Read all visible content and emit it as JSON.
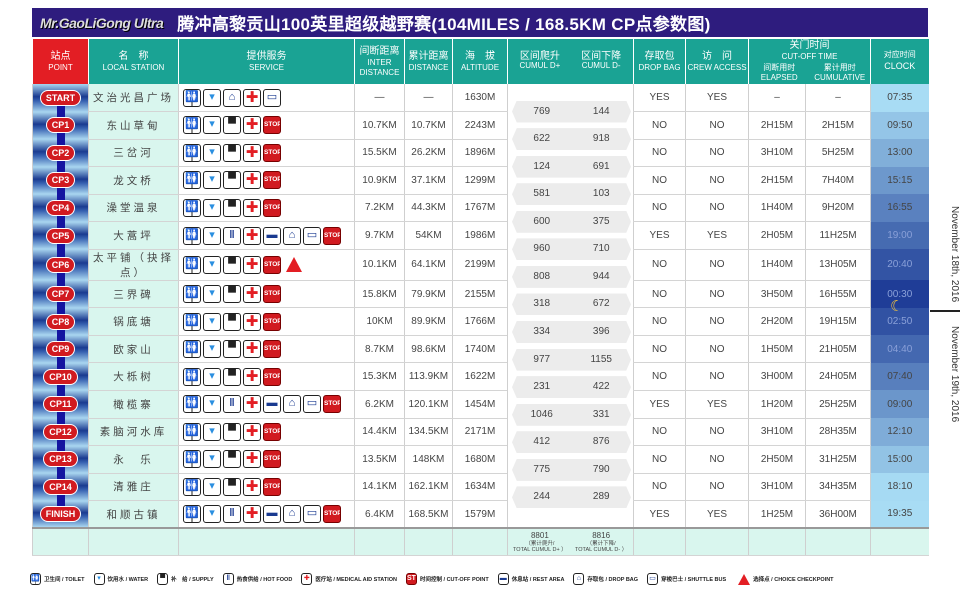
{
  "header": {
    "logo": "Mr.GaoLiGong Ultra",
    "title": "腾冲高黎贡山100英里超级越野赛(104MILES / 168.5KM CP点参数图)"
  },
  "columns": {
    "point": {
      "cn": "站点",
      "en": "POINT"
    },
    "name": {
      "cn": "名　称",
      "en": "LOCAL STATION"
    },
    "service": {
      "cn": "提供服务",
      "en": "SERVICE"
    },
    "inter": {
      "cn": "间断距离",
      "en": "INTER DISTANCE"
    },
    "distance": {
      "cn": "累计距离",
      "en": "DISTANCE"
    },
    "altitude": {
      "cn": "海　拔",
      "en": "ALTITUDE"
    },
    "ascent": {
      "cn": "区间爬升",
      "en": "CUMUL D+"
    },
    "descent": {
      "cn": "区间下降",
      "en": "CUMUL D-"
    },
    "dropbag": {
      "cn": "存取包",
      "en": "DROP BAG"
    },
    "crew": {
      "cn": "访　问",
      "en": "CREW ACCESS"
    },
    "cutoff": {
      "cn": "关门时间",
      "en": "CUT-OFF TIME"
    },
    "elapsed": {
      "cn": "间断用时",
      "en": "ELAPSED"
    },
    "cumulative": {
      "cn": "累计用时",
      "en": "CUMULATIVE"
    },
    "clock": {
      "cn": "对应时间",
      "en": "CLOCK"
    }
  },
  "icons": {
    "toilet": "🚻",
    "water": "▾",
    "supply": "▀",
    "hotfood": "ǁ",
    "medical": "✚",
    "rest": "▬",
    "dropbag": "⌂",
    "bus": "▭",
    "stop": "STOP"
  },
  "stations": [
    {
      "point": "START",
      "name": "文治光昌广场",
      "services": [
        "toilet",
        "water",
        "dropbag",
        "medical",
        "bus"
      ],
      "inter": "—",
      "distance": "—",
      "altitude": "1630M",
      "dropbag": "YES",
      "crew": "YES",
      "elapsed": "–",
      "cumulative": "–",
      "clock": "07:35"
    },
    {
      "point": "CP1",
      "name": "东山草甸",
      "services": [
        "toilet",
        "water",
        "supply",
        "medical",
        "stop"
      ],
      "inter": "10.7KM",
      "distance": "10.7KM",
      "altitude": "2243M",
      "dropbag": "NO",
      "crew": "NO",
      "elapsed": "2H15M",
      "cumulative": "2H15M",
      "clock": "09:50"
    },
    {
      "point": "CP2",
      "name": "三岔河",
      "services": [
        "toilet",
        "water",
        "supply",
        "medical",
        "stop"
      ],
      "inter": "15.5KM",
      "distance": "26.2KM",
      "altitude": "1896M",
      "dropbag": "NO",
      "crew": "NO",
      "elapsed": "3H10M",
      "cumulative": "5H25M",
      "clock": "13:00"
    },
    {
      "point": "CP3",
      "name": "龙文桥",
      "services": [
        "toilet",
        "water",
        "supply",
        "medical",
        "stop"
      ],
      "inter": "10.9KM",
      "distance": "37.1KM",
      "altitude": "1299M",
      "dropbag": "NO",
      "crew": "NO",
      "elapsed": "2H15M",
      "cumulative": "7H40M",
      "clock": "15:15"
    },
    {
      "point": "CP4",
      "name": "澡堂温泉",
      "services": [
        "toilet",
        "water",
        "supply",
        "medical",
        "stop"
      ],
      "inter": "7.2KM",
      "distance": "44.3KM",
      "altitude": "1767M",
      "dropbag": "NO",
      "crew": "NO",
      "elapsed": "1H40M",
      "cumulative": "9H20M",
      "clock": "16:55"
    },
    {
      "point": "CP5",
      "name": "大蒿坪",
      "services": [
        "toilet",
        "water",
        "hotfood",
        "medical",
        "rest",
        "dropbag",
        "bus",
        "stop"
      ],
      "inter": "9.7KM",
      "distance": "54KM",
      "altitude": "1986M",
      "dropbag": "YES",
      "crew": "YES",
      "elapsed": "2H05M",
      "cumulative": "11H25M",
      "clock": "19:00"
    },
    {
      "point": "CP6",
      "name": "太平铺（抉择点）",
      "services": [
        "toilet",
        "water",
        "supply",
        "medical",
        "stop",
        "choice"
      ],
      "inter": "10.1KM",
      "distance": "64.1KM",
      "altitude": "2199M",
      "dropbag": "NO",
      "crew": "NO",
      "elapsed": "1H40M",
      "cumulative": "13H05M",
      "clock": "20:40"
    },
    {
      "point": "CP7",
      "name": "三界碑",
      "services": [
        "toilet",
        "water",
        "supply",
        "medical",
        "stop"
      ],
      "inter": "15.8KM",
      "distance": "79.9KM",
      "altitude": "2155M",
      "dropbag": "NO",
      "crew": "NO",
      "elapsed": "3H50M",
      "cumulative": "16H55M",
      "clock": "00:30"
    },
    {
      "point": "CP8",
      "name": "锅底塘",
      "services": [
        "toilet",
        "water",
        "supply",
        "medical",
        "stop"
      ],
      "inter": "10KM",
      "distance": "89.9KM",
      "altitude": "1766M",
      "dropbag": "NO",
      "crew": "NO",
      "elapsed": "2H20M",
      "cumulative": "19H15M",
      "clock": "02:50"
    },
    {
      "point": "CP9",
      "name": "欧家山",
      "services": [
        "toilet",
        "water",
        "supply",
        "medical",
        "stop"
      ],
      "inter": "8.7KM",
      "distance": "98.6KM",
      "altitude": "1740M",
      "dropbag": "NO",
      "crew": "NO",
      "elapsed": "1H50M",
      "cumulative": "21H05M",
      "clock": "04:40"
    },
    {
      "point": "CP10",
      "name": "大栎树",
      "services": [
        "toilet",
        "water",
        "supply",
        "medical",
        "stop"
      ],
      "inter": "15.3KM",
      "distance": "113.9KM",
      "altitude": "1622M",
      "dropbag": "NO",
      "crew": "NO",
      "elapsed": "3H00M",
      "cumulative": "24H05M",
      "clock": "07:40"
    },
    {
      "point": "CP11",
      "name": "橄榄寨",
      "services": [
        "toilet",
        "water",
        "hotfood",
        "medical",
        "rest",
        "dropbag",
        "bus",
        "stop"
      ],
      "inter": "6.2KM",
      "distance": "120.1KM",
      "altitude": "1454M",
      "dropbag": "YES",
      "crew": "YES",
      "elapsed": "1H20M",
      "cumulative": "25H25M",
      "clock": "09:00"
    },
    {
      "point": "CP12",
      "name": "素脑河水库",
      "services": [
        "toilet",
        "water",
        "supply",
        "medical",
        "stop"
      ],
      "inter": "14.4KM",
      "distance": "134.5KM",
      "altitude": "2171M",
      "dropbag": "NO",
      "crew": "NO",
      "elapsed": "3H10M",
      "cumulative": "28H35M",
      "clock": "12:10"
    },
    {
      "point": "CP13",
      "name": "永　乐",
      "services": [
        "toilet",
        "water",
        "supply",
        "medical",
        "stop"
      ],
      "inter": "13.5KM",
      "distance": "148KM",
      "altitude": "1680M",
      "dropbag": "NO",
      "crew": "NO",
      "elapsed": "2H50M",
      "cumulative": "31H25M",
      "clock": "15:00"
    },
    {
      "point": "CP14",
      "name": "清雅庄",
      "services": [
        "toilet",
        "water",
        "supply",
        "medical",
        "stop"
      ],
      "inter": "14.1KM",
      "distance": "162.1KM",
      "altitude": "1634M",
      "dropbag": "NO",
      "crew": "NO",
      "elapsed": "3H10M",
      "cumulative": "34H35M",
      "clock": "18:10"
    },
    {
      "point": "FINISH",
      "name": "和顺古镇",
      "services": [
        "toilet",
        "water",
        "hotfood",
        "medical",
        "rest",
        "dropbag",
        "bus",
        "stop"
      ],
      "inter": "6.4KM",
      "distance": "168.5KM",
      "altitude": "1579M",
      "dropbag": "YES",
      "crew": "YES",
      "elapsed": "1H25M",
      "cumulative": "36H00M",
      "clock": "19:35"
    }
  ],
  "segments": [
    {
      "up": "769",
      "down": "144"
    },
    {
      "up": "622",
      "down": "918"
    },
    {
      "up": "124",
      "down": "691"
    },
    {
      "up": "581",
      "down": "103"
    },
    {
      "up": "600",
      "down": "375"
    },
    {
      "up": "960",
      "down": "710"
    },
    {
      "up": "808",
      "down": "944"
    },
    {
      "up": "318",
      "down": "672"
    },
    {
      "up": "334",
      "down": "396"
    },
    {
      "up": "977",
      "down": "1155"
    },
    {
      "up": "231",
      "down": "422"
    },
    {
      "up": "1046",
      "down": "331"
    },
    {
      "up": "412",
      "down": "876"
    },
    {
      "up": "775",
      "down": "790"
    },
    {
      "up": "244",
      "down": "289"
    }
  ],
  "totals": {
    "up": "8801",
    "up_cn": "（累计爬升/",
    "up_en": "TOTAL CUMUL D+ ）",
    "down": "8816",
    "down_cn": "（累计下降/",
    "down_en": "TOTAL CUMUL D- ）"
  },
  "dates": {
    "day1": "November 18th, 2016",
    "day2": "November 19th, 2016"
  },
  "legend": [
    {
      "icon": "toilet",
      "label": "卫生间 / TOILET"
    },
    {
      "icon": "water",
      "label": "饮用水 / WATER"
    },
    {
      "icon": "supply",
      "label": "补　给 / SUPPLY"
    },
    {
      "icon": "hotfood",
      "label": "热食供给 / HOT FOOD"
    },
    {
      "icon": "medical",
      "label": "医疗站 / MEDICAL AID STATION"
    },
    {
      "icon": "stop",
      "label": "时间控制 / CUT-OFF POINT"
    },
    {
      "icon": "rest",
      "label": "休息站 / REST AREA"
    },
    {
      "icon": "dropbag",
      "label": "存取包 / DROP BAG"
    },
    {
      "icon": "bus",
      "label": "穿梭巴士 / SHUTTLE BUS"
    },
    {
      "icon": "choice",
      "label": "选择点 / CHOICE CHECKPOINT"
    }
  ],
  "colors": {
    "title_bg": "#2e1c7e",
    "header_bg": "#1aa394",
    "point_header_bg": "#e31e24",
    "pill": "#d11a20",
    "name_bg": "#d9f6ee",
    "clock_bg": "#a8dcf4"
  }
}
